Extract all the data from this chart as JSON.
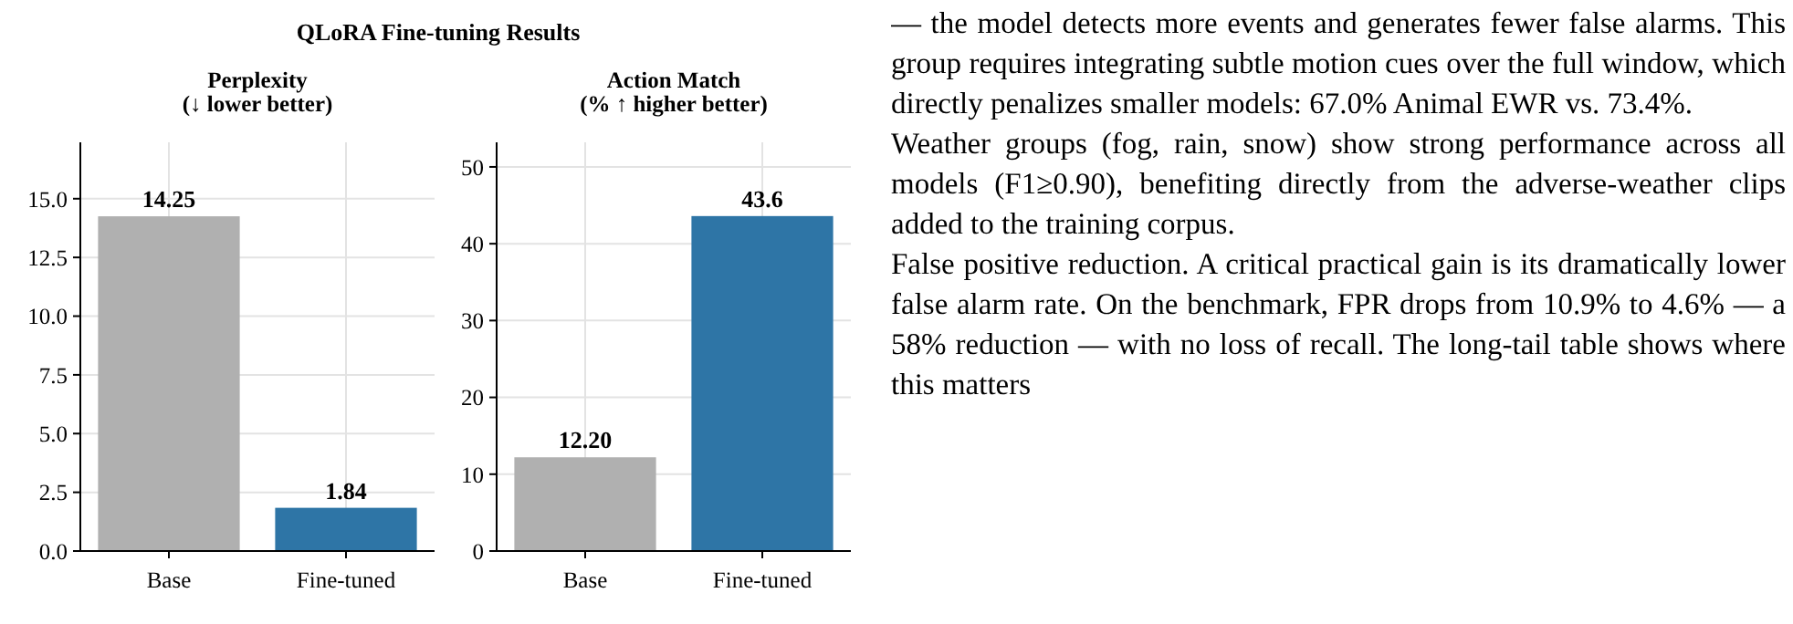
{
  "chart_data": [
    {
      "type": "other",
      "title": "QLoRA Fine-tuning Results"
    },
    {
      "type": "bar",
      "title": "Perplexity\n(↓ lower better)",
      "categories": [
        "Base",
        "Fine-tuned"
      ],
      "values": [
        14.25,
        1.84
      ],
      "colors": [
        "#b0b0b0",
        "#2e75a6"
      ],
      "value_labels": [
        "14.25",
        "1.84"
      ],
      "ylim": [
        0,
        17.4
      ],
      "yticks": [
        {
          "value": 0,
          "label": "0.0"
        },
        {
          "value": 2.5,
          "label": "2.5"
        },
        {
          "value": 5,
          "label": "5.0"
        },
        {
          "value": 7.5,
          "label": "7.5"
        },
        {
          "value": 10,
          "label": "10.0"
        },
        {
          "value": 12.5,
          "label": "12.5"
        },
        {
          "value": 15,
          "label": "15.0"
        }
      ],
      "grid": true
    },
    {
      "type": "bar",
      "title": "Action Match\n(% ↑ higher better)",
      "categories": [
        "Base",
        "Fine-tuned"
      ],
      "values": [
        12.2,
        43.6
      ],
      "colors": [
        "#b0b0b0",
        "#2e75a6"
      ],
      "value_labels": [
        "12.20",
        "43.6"
      ],
      "ylim": [
        0,
        53.2
      ],
      "yticks": [
        0,
        10,
        20,
        30,
        40,
        50
      ],
      "grid": true
    },
    {
      "type": "other",
      "annotations": [
        "— the model detects more events and generates fewer false alarms. This group requires integrating subtle motion cues over the full window, which directly penalizes smaller models: 67.0% Animal EWR vs. 73.4%.",
        "Weather groups (fog, rain, snow) show strong performance across all models (F1≥0.90), benefiting directly from the adverse-weather clips added to the training corpus.",
        "False positive reduction. A critical practical gain is its dramatically lower false alarm rate. On the benchmark, FPR drops from 10.9% to 4.6% — a 58% reduction — with no loss of recall. The long-tail table shows where this matters"
      ]
    }
  ]
}
